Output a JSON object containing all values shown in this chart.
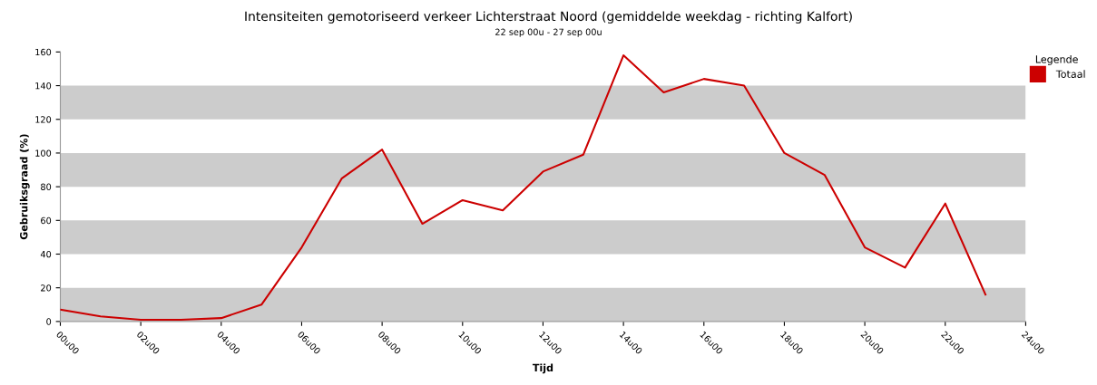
{
  "chart_data": {
    "type": "line",
    "title": "Intensiteiten gemotoriseerd verkeer Lichterstraat Noord (gemiddelde weekdag - richting Kalfort)",
    "subtitle": "22 sep 00u - 27 sep 00u",
    "xlabel": "Tijd",
    "ylabel": "Gebruiksgraad (%)",
    "legend_title": "Legende",
    "legend": "top right",
    "categories": [
      "00u00",
      null,
      "02u00",
      null,
      "04u00",
      null,
      "06u00",
      null,
      "08u00",
      null,
      "10u00",
      null,
      "12u00",
      null,
      "14u00",
      null,
      "16u00",
      null,
      "18u00",
      null,
      "20u00",
      null,
      "22u00",
      null,
      "24u00"
    ],
    "series": [
      {
        "name": "Totaal",
        "color": "#cc0000",
        "values": [
          7,
          3,
          1,
          1,
          2,
          10,
          44,
          85,
          102,
          58,
          72,
          66,
          89,
          99,
          158,
          136,
          144,
          140,
          100,
          87,
          44,
          32,
          70,
          16,
          null
        ]
      }
    ],
    "ylim": [
      0,
      160
    ],
    "yticks": [
      0,
      20,
      40,
      60,
      80,
      100,
      120,
      140,
      160
    ],
    "bands": [
      {
        "axis": "y",
        "from": 0,
        "to": 20,
        "color": "#cccccc"
      },
      {
        "axis": "y",
        "from": 40,
        "to": 60,
        "color": "#cccccc"
      },
      {
        "axis": "y",
        "from": 80,
        "to": 100,
        "color": "#cccccc"
      },
      {
        "axis": "y",
        "from": 120,
        "to": 140,
        "color": "#cccccc"
      }
    ],
    "grid": false,
    "marker": "none",
    "line_style": "solid"
  }
}
